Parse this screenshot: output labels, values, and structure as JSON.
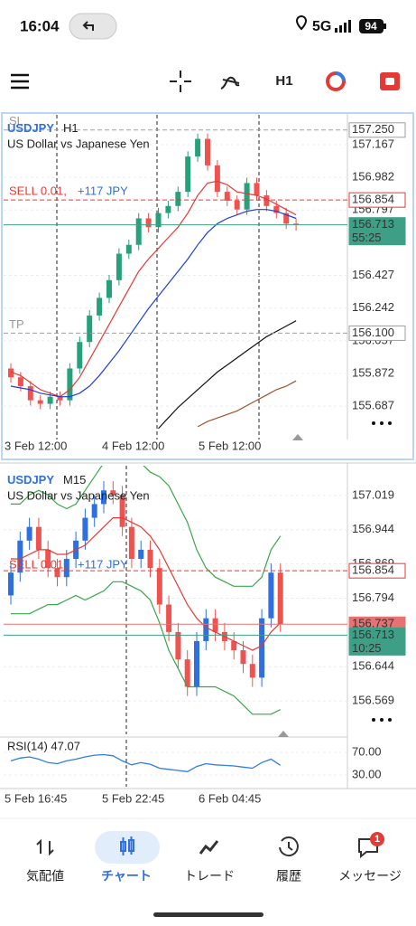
{
  "status_bar": {
    "time": "16:04",
    "network": "5G",
    "battery": "94"
  },
  "toolbar": {
    "timeframe": "H1"
  },
  "charts": [
    {
      "symbol": "USDJPY",
      "timeframe": "H1",
      "description": "US Dollar vs Japanese Yen",
      "trade": "SELL 0.01,",
      "profit": "+117 JPY",
      "ylim": [
        155.498,
        157.336
      ],
      "yticks": [
        157.167,
        156.982,
        156.797,
        156.427,
        156.242,
        156.057,
        155.872,
        155.687
      ],
      "time_labels": [
        "3 Feb 12:00",
        "4 Feb 12:00",
        "5 Feb 12:00"
      ],
      "up_color": "#26a17b",
      "down_color": "#ef5350",
      "levels": [
        {
          "label": "SL",
          "price": {
            "value": 157.25,
            "label": "157.250"
          },
          "color": "#9e9e9e",
          "style": "dashed",
          "box": "outline"
        },
        {
          "price": 156.854,
          "color": "#e53935",
          "style": "dashed",
          "box": "outline"
        },
        {
          "price": 156.713,
          "countdown": "55:25",
          "color": "#3f9f86",
          "style": "solid",
          "box": "filled"
        },
        {
          "label": "TP",
          "price": {
            "value": 156.1,
            "label": "156.100"
          },
          "color": "#9e9e9e",
          "style": "dashed",
          "box": "outline"
        }
      ],
      "candles": [
        [
          155.9,
          155.93,
          155.82,
          155.85
        ],
        [
          155.85,
          155.88,
          155.77,
          155.8
        ],
        [
          155.8,
          155.83,
          155.69,
          155.72
        ],
        [
          155.72,
          155.75,
          155.67,
          155.7
        ],
        [
          155.7,
          155.77,
          155.67,
          155.74
        ],
        [
          155.74,
          155.77,
          155.69,
          155.72
        ],
        [
          155.72,
          155.93,
          155.69,
          155.9
        ],
        [
          155.9,
          156.08,
          155.87,
          156.05
        ],
        [
          156.05,
          156.23,
          156.02,
          156.2
        ],
        [
          156.2,
          156.33,
          156.17,
          156.3
        ],
        [
          156.3,
          156.43,
          156.27,
          156.4
        ],
        [
          156.4,
          156.58,
          156.37,
          156.55
        ],
        [
          156.55,
          156.63,
          156.52,
          156.6
        ],
        [
          156.6,
          156.78,
          156.57,
          156.75
        ],
        [
          156.75,
          156.78,
          156.67,
          156.7
        ],
        [
          156.7,
          156.81,
          156.67,
          156.78
        ],
        [
          156.78,
          156.85,
          156.75,
          156.82
        ],
        [
          156.82,
          156.93,
          156.79,
          156.9
        ],
        [
          156.9,
          157.13,
          156.87,
          157.1
        ],
        [
          157.1,
          157.23,
          157.07,
          157.2
        ],
        [
          157.2,
          157.23,
          157.02,
          157.05
        ],
        [
          157.05,
          157.08,
          156.87,
          156.9
        ],
        [
          156.9,
          156.93,
          156.82,
          156.85
        ],
        [
          156.85,
          156.88,
          156.77,
          156.8
        ],
        [
          156.8,
          156.98,
          156.77,
          156.95
        ],
        [
          156.95,
          156.98,
          156.85,
          156.88
        ],
        [
          156.88,
          156.91,
          156.79,
          156.82
        ],
        [
          156.82,
          156.85,
          156.75,
          156.78
        ],
        [
          156.78,
          156.81,
          156.69,
          156.72
        ],
        [
          156.72,
          156.75,
          156.68,
          156.713
        ]
      ],
      "lines": [
        {
          "color": "#e53935",
          "values": [
            155.88,
            155.86,
            155.82,
            155.78,
            155.76,
            155.74,
            155.78,
            155.85,
            155.95,
            156.05,
            156.15,
            156.25,
            156.35,
            156.45,
            156.52,
            156.58,
            156.64,
            156.7,
            156.78,
            156.88,
            156.95,
            156.96,
            156.94,
            156.9,
            156.89,
            156.88,
            156.86,
            156.83,
            156.8,
            156.77
          ]
        },
        {
          "color": "#1e3fd8",
          "values": [
            155.8,
            155.79,
            155.78,
            155.76,
            155.75,
            155.74,
            155.74,
            155.76,
            155.8,
            155.86,
            155.93,
            156.0,
            156.08,
            156.16,
            156.24,
            156.31,
            156.38,
            156.45,
            156.52,
            156.6,
            156.67,
            156.72,
            156.75,
            156.77,
            156.79,
            156.8,
            156.8,
            156.79,
            156.77,
            156.75
          ]
        },
        {
          "color": "#111111",
          "values": [
            null,
            null,
            null,
            null,
            null,
            null,
            null,
            null,
            null,
            null,
            null,
            null,
            null,
            null,
            null,
            155.56,
            155.62,
            155.68,
            155.73,
            155.78,
            155.83,
            155.88,
            155.92,
            155.96,
            156.0,
            156.04,
            156.08,
            156.11,
            156.14,
            156.17
          ]
        },
        {
          "color": "#a0522d",
          "values": [
            null,
            null,
            null,
            null,
            null,
            null,
            null,
            null,
            null,
            null,
            null,
            null,
            null,
            null,
            null,
            null,
            null,
            null,
            null,
            155.57,
            155.6,
            155.62,
            155.64,
            155.66,
            155.69,
            155.72,
            155.75,
            155.78,
            155.8,
            155.83
          ]
        }
      ]
    },
    {
      "symbol": "USDJPY",
      "timeframe": "M15",
      "description": "US Dollar vs Japanese Yen",
      "trade": "SELL 0.01,",
      "profit": "+117 JPY",
      "ylim": [
        156.496,
        157.084
      ],
      "yticks": [
        157.019,
        156.944,
        156.869,
        156.794,
        156.644,
        156.569
      ],
      "time_labels": [
        "5 Feb 16:45",
        "5 Feb 22:45",
        "6 Feb 04:45"
      ],
      "up_color": "#2f6fe0",
      "down_color": "#ef5350",
      "levels": [
        {
          "price": 156.854,
          "color": "#e53935",
          "style": "dashed",
          "box": "outline"
        },
        {
          "price": 156.737,
          "color": "#e57373",
          "style": "solid",
          "box": "filled"
        },
        {
          "price": 156.713,
          "countdown": "10:25",
          "color": "#3f9f86",
          "style": "solid",
          "box": "filled"
        }
      ],
      "candles": [
        [
          156.8,
          156.87,
          156.78,
          156.85
        ],
        [
          156.85,
          156.94,
          156.83,
          156.92
        ],
        [
          156.92,
          156.97,
          156.9,
          156.95
        ],
        [
          156.95,
          156.97,
          156.88,
          156.9
        ],
        [
          156.9,
          156.92,
          156.84,
          156.86
        ],
        [
          156.86,
          156.88,
          156.82,
          156.84
        ],
        [
          156.84,
          156.9,
          156.82,
          156.88
        ],
        [
          156.88,
          156.94,
          156.86,
          156.92
        ],
        [
          156.92,
          156.99,
          156.9,
          156.97
        ],
        [
          156.97,
          157.02,
          156.95,
          157.0
        ],
        [
          157.0,
          157.05,
          156.98,
          157.03
        ],
        [
          157.03,
          157.05,
          157.0,
          157.02
        ],
        [
          157.02,
          157.04,
          156.93,
          156.95
        ],
        [
          156.95,
          156.97,
          156.86,
          156.88
        ],
        [
          156.88,
          156.92,
          156.86,
          156.9
        ],
        [
          156.9,
          156.92,
          156.84,
          156.86
        ],
        [
          156.86,
          156.88,
          156.76,
          156.78
        ],
        [
          156.78,
          156.8,
          156.7,
          156.72
        ],
        [
          156.72,
          156.74,
          156.64,
          156.66
        ],
        [
          156.66,
          156.68,
          156.58,
          156.6
        ],
        [
          156.6,
          156.72,
          156.58,
          156.7
        ],
        [
          156.7,
          156.77,
          156.68,
          156.75
        ],
        [
          156.75,
          156.77,
          156.7,
          156.72
        ],
        [
          156.72,
          156.74,
          156.68,
          156.7
        ],
        [
          156.7,
          156.72,
          156.66,
          156.68
        ],
        [
          156.68,
          156.7,
          156.63,
          156.65
        ],
        [
          156.65,
          156.67,
          156.6,
          156.62
        ],
        [
          156.62,
          156.77,
          156.6,
          156.75
        ],
        [
          156.75,
          156.87,
          156.73,
          156.85
        ],
        [
          156.85,
          156.87,
          156.72,
          156.737
        ]
      ],
      "lines": [
        {
          "color": "#e53935",
          "values": [
            156.88,
            156.88,
            156.89,
            156.9,
            156.9,
            156.89,
            156.89,
            156.9,
            156.91,
            156.93,
            156.95,
            156.97,
            156.97,
            156.96,
            156.95,
            156.93,
            156.9,
            156.86,
            156.82,
            156.78,
            156.75,
            156.73,
            156.72,
            156.71,
            156.7,
            156.69,
            156.68,
            156.69,
            156.72,
            156.74
          ]
        },
        {
          "color": "#3aa64a",
          "values": [
            157.0,
            157.0,
            157.02,
            157.03,
            157.02,
            157.0,
            156.99,
            157.0,
            157.03,
            157.06,
            157.09,
            157.11,
            157.11,
            157.1,
            157.09,
            157.07,
            157.06,
            157.04,
            157.0,
            156.96,
            156.9,
            156.86,
            156.84,
            156.83,
            156.82,
            156.82,
            156.82,
            156.84,
            156.9,
            156.93
          ]
        },
        {
          "color": "#3aa64a",
          "values": [
            156.76,
            156.76,
            156.76,
            156.77,
            156.78,
            156.78,
            156.79,
            156.8,
            156.79,
            156.8,
            156.81,
            156.83,
            156.83,
            156.82,
            156.81,
            156.79,
            156.74,
            156.68,
            156.64,
            156.6,
            156.6,
            156.6,
            156.6,
            156.59,
            156.58,
            156.56,
            156.54,
            156.54,
            156.54,
            156.55
          ]
        }
      ],
      "rsi": {
        "label": "RSI(14) 47.07",
        "color": "#2f7de1",
        "ylim": [
          9.2,
          92.4
        ],
        "yticks": [
          {
            "value": 70,
            "label": "70.00"
          },
          {
            "value": 30,
            "label": "30.00"
          }
        ],
        "values": [
          55,
          60,
          62,
          58,
          52,
          50,
          55,
          58,
          62,
          65,
          66,
          64,
          55,
          48,
          52,
          49,
          42,
          40,
          38,
          36,
          45,
          50,
          48,
          47,
          46,
          44,
          42,
          52,
          58,
          47.07
        ]
      }
    }
  ],
  "nav": {
    "items": [
      {
        "label": "気配値"
      },
      {
        "label": "チャート",
        "active": true
      },
      {
        "label": "トレード"
      },
      {
        "label": "履歴"
      },
      {
        "label": "メッセージ",
        "badge": "1"
      }
    ]
  }
}
